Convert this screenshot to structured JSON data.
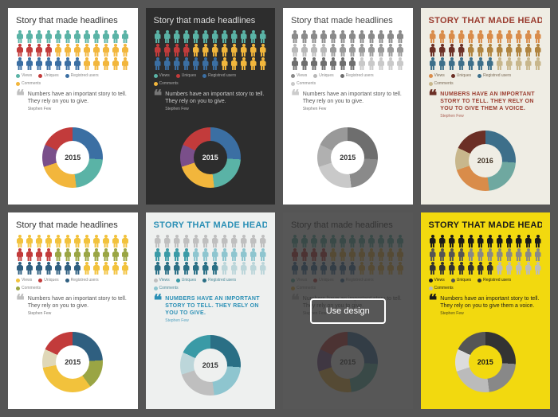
{
  "overlay_button_label": "Use design",
  "legend_labels": [
    "Views",
    "Uniques",
    "Registred users",
    "Comments"
  ],
  "cards": [
    {
      "id": "c1",
      "bg": "#ffffff",
      "title": "Story that made headlines",
      "title_color": "#333333",
      "title_upper": false,
      "title_weight": "normal",
      "people_colors": [
        [
          "#5ab3a6",
          "#5ab3a6",
          "#5ab3a6",
          "#5ab3a6",
          "#5ab3a6",
          "#5ab3a6",
          "#5ab3a6",
          "#5ab3a6",
          "#5ab3a6",
          "#5ab3a6",
          "#5ab3a6",
          "#5ab3a6"
        ],
        [
          "#c23b3b",
          "#c23b3b",
          "#c23b3b",
          "#c23b3b",
          "#f2b63c",
          "#f2b63c",
          "#f2b63c",
          "#f2b63c",
          "#f2b63c",
          "#f2b63c",
          "#f2b63c",
          "#f2b63c"
        ],
        [
          "#3b6fa3",
          "#3b6fa3",
          "#3b6fa3",
          "#3b6fa3",
          "#3b6fa3",
          "#3b6fa3",
          "#3b6fa3",
          "#f2b63c",
          "#f2b63c",
          "#f2b63c",
          "#f2b63c",
          "#f2b63c"
        ]
      ],
      "legend_colors": [
        "#5ab3a6",
        "#c23b3b",
        "#3b6fa3",
        "#f2b63c"
      ],
      "legend_text_color": "#888888",
      "quote": "Numbers have an important story to tell. They rely on you to give.",
      "quote_author": "Stephen Few",
      "quote_mark_color": "#bfbfbf",
      "quote_text_color": "#555555",
      "quote_upper": false,
      "donut_segments": [
        {
          "color": "#3b6fa3",
          "pct": 26
        },
        {
          "color": "#5ab3a6",
          "pct": 22
        },
        {
          "color": "#f2b63c",
          "pct": 22
        },
        {
          "color": "#7a4f8a",
          "pct": 12
        },
        {
          "color": "#c23b3b",
          "pct": 18
        }
      ],
      "donut_center": "2015",
      "donut_hole_bg": "#ffffff",
      "donut_center_color": "#333333",
      "has_overlay": false
    },
    {
      "id": "c2",
      "bg": "#2d2d2d",
      "title": "Story that made headlines",
      "title_color": "#dddddd",
      "title_upper": false,
      "title_weight": "normal",
      "people_colors": [
        [
          "#5ab3a6",
          "#5ab3a6",
          "#5ab3a6",
          "#5ab3a6",
          "#5ab3a6",
          "#5ab3a6",
          "#5ab3a6",
          "#5ab3a6",
          "#5ab3a6",
          "#5ab3a6",
          "#5ab3a6",
          "#5ab3a6"
        ],
        [
          "#c23b3b",
          "#c23b3b",
          "#c23b3b",
          "#c23b3b",
          "#f2b63c",
          "#f2b63c",
          "#f2b63c",
          "#f2b63c",
          "#f2b63c",
          "#f2b63c",
          "#f2b63c",
          "#f2b63c"
        ],
        [
          "#3b6fa3",
          "#3b6fa3",
          "#3b6fa3",
          "#3b6fa3",
          "#3b6fa3",
          "#3b6fa3",
          "#3b6fa3",
          "#f2b63c",
          "#f2b63c",
          "#f2b63c",
          "#f2b63c",
          "#f2b63c"
        ]
      ],
      "legend_colors": [
        "#5ab3a6",
        "#c23b3b",
        "#3b6fa3",
        "#f2b63c"
      ],
      "legend_text_color": "#aaaaaa",
      "quote": "Numbers have an important story to tell. They rely on you to give.",
      "quote_author": "Stephen Few",
      "quote_mark_color": "#777777",
      "quote_text_color": "#cccccc",
      "quote_upper": false,
      "donut_segments": [
        {
          "color": "#3b6fa3",
          "pct": 26
        },
        {
          "color": "#5ab3a6",
          "pct": 22
        },
        {
          "color": "#f2b63c",
          "pct": 22
        },
        {
          "color": "#7a4f8a",
          "pct": 12
        },
        {
          "color": "#c23b3b",
          "pct": 18
        }
      ],
      "donut_center": "2015",
      "donut_hole_bg": "#2d2d2d",
      "donut_center_color": "#eeeeee",
      "has_overlay": false
    },
    {
      "id": "c3",
      "bg": "#ffffff",
      "title": "Story that made headlines",
      "title_color": "#444444",
      "title_upper": false,
      "title_weight": "normal",
      "people_colors": [
        [
          "#8a8a8a",
          "#8a8a8a",
          "#8a8a8a",
          "#8a8a8a",
          "#8a8a8a",
          "#8a8a8a",
          "#8a8a8a",
          "#8a8a8a",
          "#8a8a8a",
          "#8a8a8a",
          "#8a8a8a",
          "#8a8a8a"
        ],
        [
          "#b8b8b8",
          "#b8b8b8",
          "#b8b8b8",
          "#b8b8b8",
          "#999999",
          "#999999",
          "#999999",
          "#999999",
          "#999999",
          "#999999",
          "#999999",
          "#999999"
        ],
        [
          "#6e6e6e",
          "#6e6e6e",
          "#6e6e6e",
          "#6e6e6e",
          "#6e6e6e",
          "#6e6e6e",
          "#6e6e6e",
          "#c9c9c9",
          "#c9c9c9",
          "#c9c9c9",
          "#c9c9c9",
          "#c9c9c9"
        ]
      ],
      "legend_colors": [
        "#8a8a8a",
        "#b8b8b8",
        "#6e6e6e",
        "#c9c9c9"
      ],
      "legend_text_color": "#888888",
      "quote": "Numbers have an important story to tell. They rely on you to give.",
      "quote_author": "Stephen Few",
      "quote_mark_color": "#cccccc",
      "quote_text_color": "#555555",
      "quote_upper": false,
      "donut_segments": [
        {
          "color": "#6e6e6e",
          "pct": 26
        },
        {
          "color": "#8a8a8a",
          "pct": 22
        },
        {
          "color": "#c9c9c9",
          "pct": 22
        },
        {
          "color": "#b0b0b0",
          "pct": 12
        },
        {
          "color": "#999999",
          "pct": 18
        }
      ],
      "donut_center": "2015",
      "donut_hole_bg": "#ffffff",
      "donut_center_color": "#333333",
      "has_overlay": false
    },
    {
      "id": "c4",
      "bg": "#efede4",
      "title": "Story that made headlines",
      "title_color": "#9a3b2e",
      "title_upper": true,
      "title_weight": "bold",
      "people_colors": [
        [
          "#d98c4a",
          "#d98c4a",
          "#d98c4a",
          "#d98c4a",
          "#d98c4a",
          "#d98c4a",
          "#d98c4a",
          "#d98c4a",
          "#d98c4a",
          "#d98c4a",
          "#d98c4a",
          "#d98c4a"
        ],
        [
          "#6b2f25",
          "#6b2f25",
          "#6b2f25",
          "#6b2f25",
          "#b0843f",
          "#b0843f",
          "#b0843f",
          "#b0843f",
          "#b0843f",
          "#b0843f",
          "#b0843f",
          "#b0843f"
        ],
        [
          "#3d6f8a",
          "#3d6f8a",
          "#3d6f8a",
          "#3d6f8a",
          "#3d6f8a",
          "#3d6f8a",
          "#3d6f8a",
          "#c8b78c",
          "#c8b78c",
          "#c8b78c",
          "#c8b78c",
          "#c8b78c"
        ]
      ],
      "legend_colors": [
        "#d98c4a",
        "#6b2f25",
        "#3d6f8a",
        "#c8b78c"
      ],
      "legend_text_color": "#7a6a55",
      "quote": "Numbers have an important story to tell. They rely on you to give them a voice.",
      "quote_author": "Stephen Few",
      "quote_mark_color": "#6b2f25",
      "quote_text_color": "#9a3b2e",
      "quote_upper": true,
      "donut_segments": [
        {
          "color": "#3d6f8a",
          "pct": 26
        },
        {
          "color": "#6fa8a0",
          "pct": 22
        },
        {
          "color": "#d98c4a",
          "pct": 22
        },
        {
          "color": "#c8b78c",
          "pct": 12
        },
        {
          "color": "#6b2f25",
          "pct": 18
        }
      ],
      "donut_center": "2016",
      "donut_hole_bg": "#efede4",
      "donut_center_color": "#46382a",
      "has_overlay": false
    },
    {
      "id": "c5",
      "bg": "#ffffff",
      "title": "Story that made headlines",
      "title_color": "#333333",
      "title_upper": false,
      "title_weight": "normal",
      "people_colors": [
        [
          "#f2c23c",
          "#f2c23c",
          "#f2c23c",
          "#f2c23c",
          "#f2c23c",
          "#f2c23c",
          "#f2c23c",
          "#f2c23c",
          "#f2c23c",
          "#f2c23c",
          "#f2c23c",
          "#f2c23c"
        ],
        [
          "#c23b3b",
          "#c23b3b",
          "#c23b3b",
          "#c23b3b",
          "#9aa544",
          "#9aa544",
          "#9aa544",
          "#9aa544",
          "#9aa544",
          "#9aa544",
          "#9aa544",
          "#9aa544"
        ],
        [
          "#2f5f80",
          "#2f5f80",
          "#2f5f80",
          "#2f5f80",
          "#2f5f80",
          "#2f5f80",
          "#2f5f80",
          "#f2c23c",
          "#f2c23c",
          "#f2c23c",
          "#f2c23c",
          "#f2c23c"
        ]
      ],
      "legend_colors": [
        "#f2c23c",
        "#c23b3b",
        "#2f5f80",
        "#9aa544"
      ],
      "legend_text_color": "#888888",
      "quote": "Numbers have an important story to tell. They rely on you to give.",
      "quote_author": "Stephen Few",
      "quote_mark_color": "#bfbfbf",
      "quote_text_color": "#555555",
      "quote_upper": false,
      "donut_segments": [
        {
          "color": "#2f5f80",
          "pct": 24
        },
        {
          "color": "#9aa544",
          "pct": 16
        },
        {
          "color": "#f2c23c",
          "pct": 32
        },
        {
          "color": "#e0d8b8",
          "pct": 10
        },
        {
          "color": "#c23b3b",
          "pct": 18
        }
      ],
      "donut_center": "2015",
      "donut_hole_bg": "#ffffff",
      "donut_center_color": "#333333",
      "has_overlay": false
    },
    {
      "id": "c6",
      "bg": "#eef0ef",
      "title": "Story that made headlines",
      "title_color": "#2a8fb5",
      "title_upper": true,
      "title_weight": "bold",
      "people_colors": [
        [
          "#bfbfbf",
          "#bfbfbf",
          "#bfbfbf",
          "#bfbfbf",
          "#bfbfbf",
          "#bfbfbf",
          "#bfbfbf",
          "#bfbfbf",
          "#bfbfbf",
          "#bfbfbf",
          "#bfbfbf",
          "#bfbfbf"
        ],
        [
          "#3a9aa6",
          "#3a9aa6",
          "#3a9aa6",
          "#3a9aa6",
          "#8ec5cf",
          "#8ec5cf",
          "#8ec5cf",
          "#8ec5cf",
          "#8ec5cf",
          "#8ec5cf",
          "#8ec5cf",
          "#8ec5cf"
        ],
        [
          "#2a6f85",
          "#2a6f85",
          "#2a6f85",
          "#2a6f85",
          "#2a6f85",
          "#2a6f85",
          "#2a6f85",
          "#bcd6da",
          "#bcd6da",
          "#bcd6da",
          "#bcd6da",
          "#bcd6da"
        ]
      ],
      "legend_colors": [
        "#bfbfbf",
        "#3a9aa6",
        "#2a6f85",
        "#8ec5cf"
      ],
      "legend_text_color": "#4a8a99",
      "quote": "Numbers have an important story to tell. They rely on you to give.",
      "quote_author": "Stephen Few",
      "quote_mark_color": "#2a8fb5",
      "quote_text_color": "#2a8fb5",
      "quote_upper": true,
      "donut_segments": [
        {
          "color": "#2a6f85",
          "pct": 26
        },
        {
          "color": "#8ec5cf",
          "pct": 22
        },
        {
          "color": "#bfbfbf",
          "pct": 22
        },
        {
          "color": "#bcd6da",
          "pct": 12
        },
        {
          "color": "#3a9aa6",
          "pct": 18
        }
      ],
      "donut_center": "2015",
      "donut_hole_bg": "#eef0ef",
      "donut_center_color": "#333333",
      "has_overlay": false
    },
    {
      "id": "c7",
      "bg": "#ffffff",
      "title": "Story that made headlines",
      "title_color": "#333333",
      "title_upper": false,
      "title_weight": "normal",
      "people_colors": [
        [
          "#5ab3a6",
          "#5ab3a6",
          "#5ab3a6",
          "#5ab3a6",
          "#5ab3a6",
          "#5ab3a6",
          "#5ab3a6",
          "#5ab3a6",
          "#5ab3a6",
          "#5ab3a6",
          "#5ab3a6",
          "#5ab3a6"
        ],
        [
          "#c23b3b",
          "#c23b3b",
          "#c23b3b",
          "#c23b3b",
          "#f2b63c",
          "#f2b63c",
          "#f2b63c",
          "#f2b63c",
          "#f2b63c",
          "#f2b63c",
          "#f2b63c",
          "#f2b63c"
        ],
        [
          "#3b6fa3",
          "#3b6fa3",
          "#3b6fa3",
          "#3b6fa3",
          "#3b6fa3",
          "#3b6fa3",
          "#3b6fa3",
          "#f2b63c",
          "#f2b63c",
          "#f2b63c",
          "#f2b63c",
          "#f2b63c"
        ]
      ],
      "legend_colors": [
        "#5ab3a6",
        "#c23b3b",
        "#3b6fa3",
        "#f2b63c"
      ],
      "legend_text_color": "#888888",
      "quote": "Numbers have an important story to tell. They rely on you to give.",
      "quote_author": "Stephen Few",
      "quote_mark_color": "#bfbfbf",
      "quote_text_color": "#555555",
      "quote_upper": false,
      "donut_segments": [
        {
          "color": "#3b6fa3",
          "pct": 26
        },
        {
          "color": "#5ab3a6",
          "pct": 22
        },
        {
          "color": "#f2b63c",
          "pct": 22
        },
        {
          "color": "#7a4f8a",
          "pct": 12
        },
        {
          "color": "#c23b3b",
          "pct": 18
        }
      ],
      "donut_center": "2015",
      "donut_hole_bg": "#ffffff",
      "donut_center_color": "#333333",
      "has_overlay": true
    },
    {
      "id": "c8",
      "bg": "#f2d90f",
      "title": "Story that made headlines",
      "title_color": "#1a1a1a",
      "title_upper": true,
      "title_weight": "bold",
      "people_colors": [
        [
          "#1a1a1a",
          "#1a1a1a",
          "#1a1a1a",
          "#1a1a1a",
          "#1a1a1a",
          "#1a1a1a",
          "#1a1a1a",
          "#1a1a1a",
          "#1a1a1a",
          "#1a1a1a",
          "#1a1a1a",
          "#1a1a1a"
        ],
        [
          "#555555",
          "#555555",
          "#555555",
          "#555555",
          "#888888",
          "#888888",
          "#888888",
          "#888888",
          "#888888",
          "#888888",
          "#888888",
          "#888888"
        ],
        [
          "#333333",
          "#333333",
          "#333333",
          "#333333",
          "#333333",
          "#333333",
          "#333333",
          "#bbbbbb",
          "#bbbbbb",
          "#bbbbbb",
          "#bbbbbb",
          "#bbbbbb"
        ]
      ],
      "legend_colors": [
        "#1a1a1a",
        "#555555",
        "#333333",
        "#bbbbbb"
      ],
      "legend_text_color": "#1a1a1a",
      "quote": "Numbers have an important story to tell. They rely on you to give them a voice.",
      "quote_author": "Stephen Few",
      "quote_mark_color": "#1a1a1a",
      "quote_text_color": "#1a1a1a",
      "quote_upper": false,
      "donut_segments": [
        {
          "color": "#333333",
          "pct": 26
        },
        {
          "color": "#888888",
          "pct": 22
        },
        {
          "color": "#bbbbbb",
          "pct": 22
        },
        {
          "color": "#dcdcdc",
          "pct": 12
        },
        {
          "color": "#555555",
          "pct": 18
        }
      ],
      "donut_center": "2015",
      "donut_hole_bg": "#f2d90f",
      "donut_center_color": "#1a1a1a",
      "has_overlay": false
    }
  ]
}
